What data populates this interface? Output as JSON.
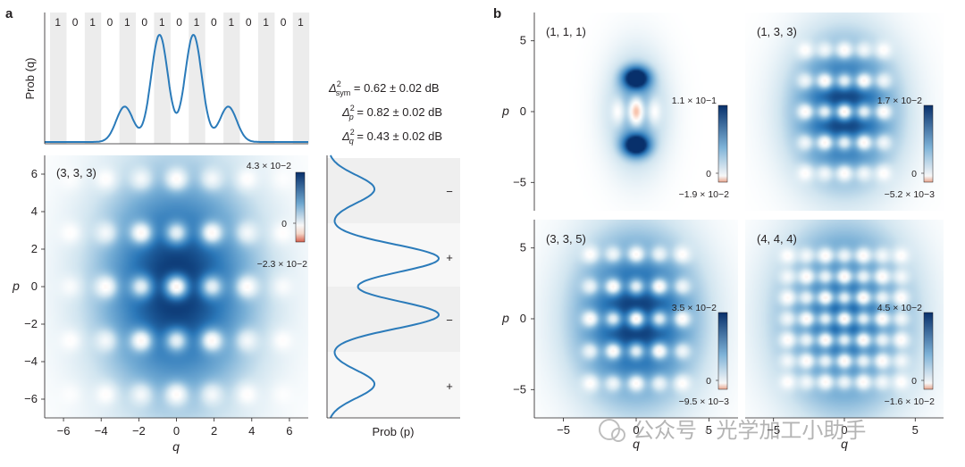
{
  "panel_labels": {
    "a": "a",
    "b": "b"
  },
  "watermark": "公众号 · 光学加工小助手",
  "chart_data": [
    {
      "id": "a-top",
      "type": "line",
      "ylabel": "Prob (q)",
      "bit_labels": [
        "1",
        "0",
        "1",
        "0",
        "1",
        "0",
        "1",
        "0",
        "1",
        "0",
        "1",
        "0",
        "1",
        "0",
        "1"
      ],
      "xlim": [
        -7,
        7
      ],
      "peaks": [
        {
          "q": -2.75,
          "height": 0.33
        },
        {
          "q": -0.9,
          "height": 1.0
        },
        {
          "q": 0.9,
          "height": 1.0
        },
        {
          "q": 2.75,
          "height": 0.33
        }
      ],
      "peak_sigma": 0.45
    },
    {
      "id": "a-main",
      "type": "heatmap",
      "annotation": "(3, 3, 3)",
      "xlabel": "q",
      "ylabel": "p",
      "xlim": [
        -7,
        7
      ],
      "ylim": [
        -7,
        7
      ],
      "xticks": [
        "−6",
        "−4",
        "−2",
        "0",
        "2",
        "4",
        "6"
      ],
      "yticks": [
        "6",
        "4",
        "2",
        "0",
        "−2",
        "−4",
        "−6"
      ],
      "colorbar": {
        "max": "4.3 × 10−2",
        "zero": "0",
        "min": "−2.3 × 10−2"
      },
      "envelope": {
        "sq": 3.0,
        "sp": 4.4
      },
      "lattice": {
        "dq": 1.9,
        "dp": 2.9,
        "nq": 3,
        "np": 2
      }
    },
    {
      "id": "a-side",
      "type": "line",
      "xlabel": "Prob (p)",
      "signs": [
        "−",
        "+",
        "−",
        "+"
      ],
      "peaks": [
        {
          "p": 5.2,
          "height": 0.42
        },
        {
          "p": 1.5,
          "height": 1.0
        },
        {
          "p": -1.5,
          "height": 1.0
        },
        {
          "p": -5.2,
          "height": 0.42
        }
      ],
      "peak_sigma": 0.75,
      "annotations": [
        {
          "sym": "Δ",
          "sup": "2",
          "sub": "sym",
          "text": " = 0.62 ± 0.02 dB"
        },
        {
          "sym": "Δ",
          "sup": "2",
          "sub": "p",
          "text": " = 0.82 ± 0.02 dB"
        },
        {
          "sym": "Δ",
          "sup": "2",
          "sub": "q",
          "text": " = 0.43 ± 0.02 dB"
        }
      ]
    },
    {
      "id": "b1",
      "type": "heatmap",
      "annotation": "(1, 1, 1)",
      "xlabel": "",
      "ylabel": "p",
      "yticks": [
        "5",
        "0",
        "−5"
      ],
      "xticks": [],
      "colorbar": {
        "max": "1.1 × 10−1",
        "zero": "0",
        "min": "−1.9 × 10−2"
      },
      "envelope": {
        "sq": 1.4,
        "sp": 2.8
      },
      "lattice": {
        "dq": 1.3,
        "dp": 2.4,
        "nq": 1,
        "np": 1
      }
    },
    {
      "id": "b2",
      "type": "heatmap",
      "annotation": "(1, 3, 3)",
      "xlabel": "",
      "ylabel": "",
      "yticks": [],
      "xticks": [],
      "colorbar": {
        "max": "1.7 × 10−2",
        "zero": "0",
        "min": "−5.2 × 10−3"
      },
      "envelope": {
        "sq": 2.6,
        "sp": 3.6
      },
      "lattice": {
        "dq": 1.4,
        "dp": 2.2,
        "nq": 2,
        "np": 2
      }
    },
    {
      "id": "b3",
      "type": "heatmap",
      "annotation": "(3, 3, 5)",
      "xlabel": "q",
      "ylabel": "p",
      "yticks": [
        "5",
        "0",
        "−5"
      ],
      "xticks": [
        "−5",
        "0",
        "5"
      ],
      "colorbar": {
        "max": "3.5 × 10−2",
        "zero": "0",
        "min": "−9.5 × 10−3"
      },
      "envelope": {
        "sq": 3.0,
        "sp": 4.2
      },
      "lattice": {
        "dq": 1.6,
        "dp": 2.3,
        "nq": 2,
        "np": 2
      }
    },
    {
      "id": "b4",
      "type": "heatmap",
      "annotation": "(4, 4, 4)",
      "xlabel": "q",
      "ylabel": "",
      "yticks": [],
      "xticks": [
        "−5",
        "0",
        "5"
      ],
      "colorbar": {
        "max": "4.5 × 10−2",
        "zero": "0",
        "min": "−1.6 × 10−2"
      },
      "envelope": {
        "sq": 3.2,
        "sp": 4.4
      },
      "lattice": {
        "dq": 1.35,
        "dp": 1.5,
        "nq": 3,
        "np": 3
      }
    }
  ]
}
